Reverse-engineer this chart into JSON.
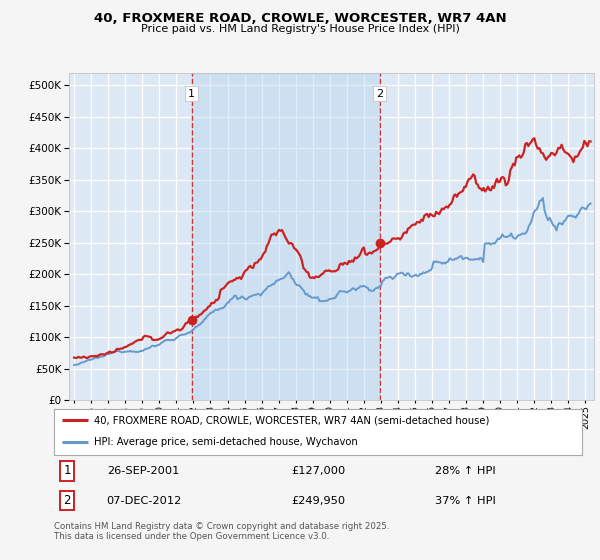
{
  "title_line1": "40, FROXMERE ROAD, CROWLE, WORCESTER, WR7 4AN",
  "title_line2": "Price paid vs. HM Land Registry's House Price Index (HPI)",
  "bg_color": "#dce9f5",
  "fig_bg_color": "#f5f5f5",
  "grid_color": "#ffffff",
  "red_color": "#cc2222",
  "blue_color": "#6699cc",
  "annotation1_date": "26-SEP-2001",
  "annotation1_price": "£127,000",
  "annotation1_hpi": "28% ↑ HPI",
  "annotation2_date": "07-DEC-2012",
  "annotation2_price": "£249,950",
  "annotation2_hpi": "37% ↑ HPI",
  "legend_label1": "40, FROXMERE ROAD, CROWLE, WORCESTER, WR7 4AN (semi-detached house)",
  "legend_label2": "HPI: Average price, semi-detached house, Wychavon",
  "footer": "Contains HM Land Registry data © Crown copyright and database right 2025.\nThis data is licensed under the Open Government Licence v3.0.",
  "vline1_x": 2001.9,
  "vline2_x": 2012.92,
  "sale1_x": 2001.9,
  "sale1_y": 127000,
  "sale2_x": 2012.92,
  "sale2_y": 249950,
  "ylim": [
    0,
    520000
  ],
  "yticks": [
    0,
    50000,
    100000,
    150000,
    200000,
    250000,
    300000,
    350000,
    400000,
    450000,
    500000
  ],
  "xmin": 1994.7,
  "xmax": 2025.5
}
